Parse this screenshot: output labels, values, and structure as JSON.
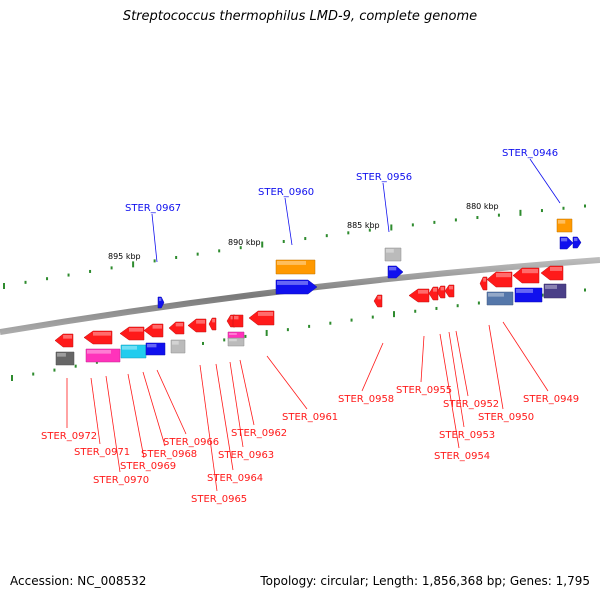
{
  "title": "Streptococcus thermophilus LMD-9, complete genome",
  "footer": {
    "accession": "Accession: NC_008532",
    "topology": "Topology: circular; Length: 1,856,368 bp; Genes: 1,795"
  },
  "colors": {
    "backbone": "#888888",
    "dots": "#2e8b2e",
    "red": "#ff1a1a",
    "blue": "#1010ee",
    "orange": "#ff9900",
    "magenta": "#ff33bb",
    "cyan": "#22ccee",
    "grey": "#bbbbbb",
    "darkgrey": "#666666",
    "steel": "#5577aa",
    "slate": "#4a3f88"
  },
  "scale_labels": [
    "895 kbp",
    "890 kbp",
    "885 kbp",
    "880 kbp"
  ],
  "top_labels": [
    "STER_0967",
    "STER_0960",
    "STER_0956",
    "STER_0946"
  ],
  "bottom_labels": [
    "STER_0972",
    "STER_0971",
    "STER_0970",
    "STER_0969",
    "STER_0968",
    "STER_0966",
    "STER_0965",
    "STER_0964",
    "STER_0963",
    "STER_0962",
    "STER_0961",
    "STER_0958",
    "STER_0955",
    "STER_0954",
    "STER_0953",
    "STER_0952",
    "STER_0950",
    "STER_0949"
  ]
}
